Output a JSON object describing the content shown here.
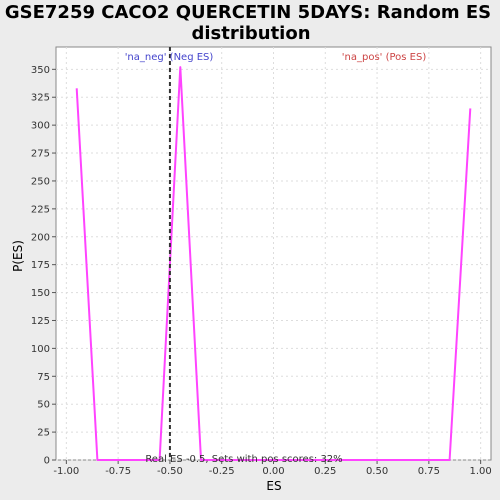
{
  "chart_data": {
    "type": "line",
    "title_line1": "GSE7259 CACO2 QUERCETIN 5DAYS: Random ES",
    "title_line2": "distribution",
    "xlabel": "ES",
    "ylabel": "P(ES)",
    "xlim": [
      -1.05,
      1.05
    ],
    "ylim": [
      0,
      370
    ],
    "x_ticks": [
      -1.0,
      -0.75,
      -0.5,
      -0.25,
      0.0,
      0.25,
      0.5,
      0.75,
      1.0
    ],
    "x_tick_labels": [
      "-1.00",
      "-0.75",
      "-0.50",
      "-0.25",
      "0.00",
      "0.25",
      "0.50",
      "0.75",
      "1.00"
    ],
    "y_ticks": [
      0,
      25,
      50,
      75,
      100,
      125,
      150,
      175,
      200,
      225,
      250,
      275,
      300,
      325,
      350
    ],
    "y_tick_labels": [
      "0",
      "25",
      "50",
      "75",
      "100",
      "125",
      "150",
      "175",
      "200",
      "225",
      "250",
      "275",
      "300",
      "325",
      "350"
    ],
    "grid": true,
    "series": [
      {
        "color": "#ff44ff",
        "x": [
          -0.95,
          -0.85,
          -0.55,
          -0.45,
          -0.35,
          0.85,
          0.95
        ],
        "y": [
          333,
          0,
          0,
          352,
          0,
          0,
          315
        ]
      }
    ],
    "real_es": -0.5,
    "real_es_color": "#333333",
    "annotations": {
      "neg_label": "'na_neg' (Neg ES)",
      "neg_color": "#4444cc",
      "pos_label": "'na_pos' (Pos ES)",
      "pos_color": "#cc4444",
      "bottom_text": "Real ES -0.5, Sets with pos scores: 32%"
    }
  }
}
